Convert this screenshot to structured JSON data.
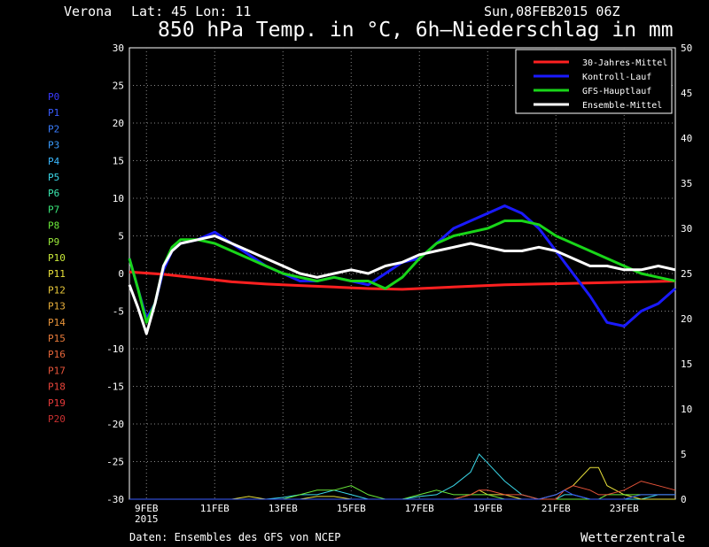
{
  "header": {
    "location": "Verona",
    "coords": "Lat: 45 Lon: 11",
    "run": "Sun,08FEB2015 06Z",
    "title": "850 hPa Temp. in °C, 6h–Niederschlag in mm"
  },
  "footer": {
    "source": "Daten: Ensembles des GFS von NCEP",
    "brand": "Wetterzentrale"
  },
  "members": [
    {
      "label": "P0",
      "color": "#3a3aff"
    },
    {
      "label": "P1",
      "color": "#3a5cff"
    },
    {
      "label": "P2",
      "color": "#3a7dff"
    },
    {
      "label": "P3",
      "color": "#3a9cff"
    },
    {
      "label": "P4",
      "color": "#3ab8ff"
    },
    {
      "label": "P5",
      "color": "#3ad7e8"
    },
    {
      "label": "P6",
      "color": "#3ae8b0"
    },
    {
      "label": "P7",
      "color": "#3ae87a"
    },
    {
      "label": "P8",
      "color": "#6ae83a"
    },
    {
      "label": "P9",
      "color": "#9ae83a"
    },
    {
      "label": "P10",
      "color": "#c8e83a"
    },
    {
      "label": "P11",
      "color": "#e8e03a"
    },
    {
      "label": "P12",
      "color": "#e8c83a"
    },
    {
      "label": "P13",
      "color": "#e8ae3a"
    },
    {
      "label": "P14",
      "color": "#e8943a"
    },
    {
      "label": "P15",
      "color": "#e87a3a"
    },
    {
      "label": "P16",
      "color": "#e8663a"
    },
    {
      "label": "P17",
      "color": "#e8543a"
    },
    {
      "label": "P18",
      "color": "#e8443a"
    },
    {
      "label": "P19",
      "color": "#e83a3a"
    },
    {
      "label": "P20",
      "color": "#c83030"
    }
  ],
  "chart_data": {
    "type": "line",
    "x_unit": "day of February 2015 (ticks every 2 days)",
    "xlim": [
      8.5,
      24.5
    ],
    "x_ticks": [
      {
        "x": 9,
        "label": "9FEB",
        "sub": "2015"
      },
      {
        "x": 11,
        "label": "11FEB"
      },
      {
        "x": 13,
        "label": "13FEB"
      },
      {
        "x": 15,
        "label": "15FEB"
      },
      {
        "x": 17,
        "label": "17FEB"
      },
      {
        "x": 19,
        "label": "19FEB"
      },
      {
        "x": 21,
        "label": "21FEB"
      },
      {
        "x": 23,
        "label": "23FEB"
      }
    ],
    "y_left": {
      "range": [
        -30,
        30
      ],
      "ticks": [
        30,
        25,
        20,
        15,
        10,
        5,
        0,
        -5,
        -10,
        -15,
        -20,
        -25,
        -30
      ]
    },
    "y_right": {
      "range": [
        0,
        50
      ],
      "ticks": [
        50,
        45,
        40,
        35,
        30,
        25,
        20,
        15,
        10,
        5,
        0
      ]
    },
    "grid": true,
    "legend": {
      "placement": "top-right",
      "items": [
        {
          "name": "30-Jahres-Mittel",
          "color": "#ff2020"
        },
        {
          "name": "Kontroll-Lauf",
          "color": "#1a1aff"
        },
        {
          "name": "GFS-Hauptlauf",
          "color": "#19d619"
        },
        {
          "name": "Ensemble-Mittel",
          "color": "#ffffff"
        }
      ]
    },
    "series": [
      {
        "name": "30-Jahres-Mittel",
        "color": "#ff2020",
        "axis": "left",
        "x": [
          8.5,
          9.5,
          10.5,
          11.5,
          12.5,
          13.5,
          14.5,
          15.5,
          16.5,
          17.5,
          18.5,
          19.5,
          20.5,
          21.5,
          22.5,
          23.5,
          24.5
        ],
        "y": [
          0.2,
          -0.1,
          -0.6,
          -1.1,
          -1.4,
          -1.6,
          -1.8,
          -2.0,
          -2.1,
          -1.9,
          -1.7,
          -1.5,
          -1.4,
          -1.3,
          -1.2,
          -1.1,
          -1.0
        ]
      },
      {
        "name": "Kontroll-Lauf",
        "color": "#1a1aff",
        "axis": "left",
        "x": [
          8.5,
          8.75,
          9.0,
          9.25,
          9.5,
          9.75,
          10.0,
          10.5,
          11.0,
          11.5,
          12.0,
          12.5,
          13.0,
          13.5,
          14.0,
          14.5,
          15.0,
          15.5,
          16.0,
          16.5,
          17.0,
          17.5,
          18.0,
          18.5,
          19.0,
          19.5,
          20.0,
          20.5,
          21.0,
          21.5,
          22.0,
          22.5,
          23.0,
          23.5,
          24.0,
          24.5
        ],
        "y": [
          2.0,
          -2.0,
          -6.0,
          -4.0,
          0.5,
          3.0,
          4.0,
          4.5,
          5.5,
          4.0,
          2.5,
          1.0,
          0.0,
          -1.0,
          -1.0,
          -0.5,
          -1.0,
          -1.5,
          0.0,
          1.5,
          2.0,
          4.0,
          6.0,
          7.0,
          8.0,
          9.0,
          8.0,
          6.0,
          3.0,
          0.0,
          -3.0,
          -6.5,
          -7.0,
          -5.0,
          -4.0,
          -2.0
        ]
      },
      {
        "name": "GFS-Hauptlauf",
        "color": "#19d619",
        "axis": "left",
        "x": [
          8.5,
          8.75,
          9.0,
          9.25,
          9.5,
          9.75,
          10.0,
          10.5,
          11.0,
          11.5,
          12.0,
          12.5,
          13.0,
          13.5,
          14.0,
          14.5,
          15.0,
          15.5,
          16.0,
          16.5,
          17.0,
          17.5,
          18.0,
          18.5,
          19.0,
          19.5,
          20.0,
          20.5,
          21.0,
          21.5,
          22.0,
          22.5,
          23.0,
          23.5,
          24.0,
          24.5
        ],
        "y": [
          2.0,
          -2.0,
          -6.5,
          -4.0,
          1.0,
          3.5,
          4.5,
          4.5,
          4.0,
          3.0,
          2.0,
          1.0,
          0.0,
          -0.5,
          -1.0,
          -0.5,
          -1.0,
          -1.0,
          -2.0,
          -0.5,
          2.0,
          4.0,
          5.0,
          5.5,
          6.0,
          7.0,
          7.0,
          6.5,
          5.0,
          4.0,
          3.0,
          2.0,
          1.0,
          0.0,
          -0.5,
          -1.0
        ]
      },
      {
        "name": "Ensemble-Mittel",
        "color": "#ffffff",
        "axis": "left",
        "x": [
          8.5,
          8.75,
          9.0,
          9.25,
          9.5,
          9.75,
          10.0,
          10.5,
          11.0,
          11.5,
          12.0,
          12.5,
          13.0,
          13.5,
          14.0,
          14.5,
          15.0,
          15.5,
          16.0,
          16.5,
          17.0,
          17.5,
          18.0,
          18.5,
          19.0,
          19.5,
          20.0,
          20.5,
          21.0,
          21.5,
          22.0,
          22.5,
          23.0,
          23.5,
          24.0,
          24.5
        ],
        "y": [
          -1.5,
          -4.5,
          -8.0,
          -4.0,
          1.0,
          3.0,
          4.0,
          4.5,
          5.0,
          4.0,
          3.0,
          2.0,
          1.0,
          0.0,
          -0.5,
          0.0,
          0.5,
          0.0,
          1.0,
          1.5,
          2.5,
          3.0,
          3.5,
          4.0,
          3.5,
          3.0,
          3.0,
          3.5,
          3.0,
          2.0,
          1.0,
          1.0,
          0.5,
          0.5,
          1.0,
          0.5
        ]
      }
    ],
    "precipitation": {
      "axis": "right",
      "x": [
        8.5,
        9.0,
        9.5,
        10.0,
        10.5,
        11.0,
        11.5,
        12.0,
        12.5,
        13.0,
        13.5,
        14.0,
        14.5,
        15.0,
        15.5,
        16.0,
        16.5,
        17.0,
        17.5,
        18.0,
        18.5,
        18.75,
        19.0,
        19.5,
        20.0,
        20.5,
        21.0,
        21.25,
        21.5,
        22.0,
        22.25,
        22.5,
        23.0,
        23.5,
        24.0,
        24.5
      ],
      "lines": [
        {
          "color": "#3ad7e8",
          "y": [
            0,
            0,
            0,
            0,
            0,
            0,
            0,
            0,
            0,
            0.2,
            0.5,
            0.5,
            1.0,
            0.5,
            0,
            0,
            0,
            0.3,
            0.5,
            1.5,
            3.0,
            5.0,
            4.0,
            2.0,
            0.5,
            0,
            0,
            0.5,
            0.5,
            0,
            0,
            0,
            0,
            0,
            0.5,
            0.5
          ]
        },
        {
          "color": "#e8e03a",
          "y": [
            0,
            0,
            0,
            0,
            0,
            0,
            0,
            0.3,
            0,
            0,
            0,
            0.3,
            0.3,
            0,
            0,
            0,
            0,
            0,
            0,
            0,
            0.5,
            1.0,
            0.5,
            0.5,
            0,
            0,
            0.5,
            1.0,
            1.5,
            3.5,
            3.5,
            1.5,
            0.5,
            0,
            0,
            0
          ]
        },
        {
          "color": "#6ae83a",
          "y": [
            0,
            0,
            0,
            0,
            0,
            0,
            0,
            0,
            0,
            0,
            0.5,
            1.0,
            1.0,
            1.5,
            0.5,
            0,
            0,
            0.5,
            1.0,
            0.5,
            0.5,
            0.5,
            0.5,
            0,
            0,
            0,
            0,
            0,
            0,
            0,
            0,
            0.5,
            0.5,
            0.5,
            0.5,
            0.5
          ]
        },
        {
          "color": "#e8543a",
          "y": [
            0,
            0,
            0,
            0,
            0,
            0,
            0,
            0,
            0,
            0,
            0,
            0,
            0,
            0,
            0,
            0,
            0,
            0,
            0,
            0,
            0.5,
            1.0,
            1.0,
            0.5,
            0.5,
            0,
            0,
            1.0,
            1.5,
            1.0,
            0.5,
            0.5,
            1.0,
            2.0,
            1.5,
            1.0
          ]
        },
        {
          "color": "#3a5cff",
          "y": [
            0,
            0,
            0,
            0,
            0,
            0,
            0,
            0,
            0,
            0,
            0,
            0,
            0,
            0,
            0,
            0,
            0,
            0,
            0,
            0,
            0,
            0,
            0,
            0,
            0,
            0,
            0.5,
            1.0,
            0.5,
            0,
            0,
            0,
            0,
            0.5,
            0.5,
            0.5
          ]
        }
      ]
    }
  }
}
